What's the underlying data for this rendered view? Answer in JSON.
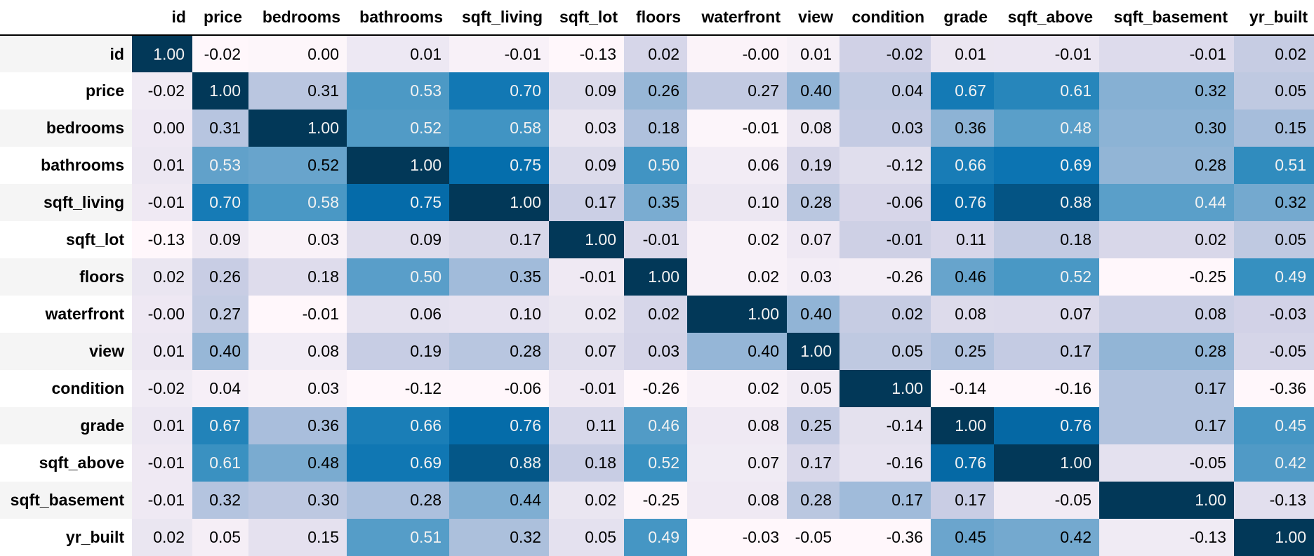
{
  "chart_data": {
    "type": "heatmap",
    "title": "",
    "xlabel": "",
    "ylabel": "",
    "columns": [
      "id",
      "price",
      "bedrooms",
      "bathrooms",
      "sqft_living",
      "sqft_lot",
      "floors",
      "waterfront",
      "view",
      "condition",
      "grade",
      "sqft_above",
      "sqft_basement",
      "yr_built"
    ],
    "rows": [
      "id",
      "price",
      "bedrooms",
      "bathrooms",
      "sqft_living",
      "sqft_lot",
      "floors",
      "waterfront",
      "view",
      "condition",
      "grade",
      "sqft_above",
      "sqft_basement",
      "yr_built"
    ],
    "values": [
      [
        "1.00",
        "-0.02",
        "0.00",
        "0.01",
        "-0.01",
        "-0.13",
        "0.02",
        "-0.00",
        "0.01",
        "-0.02",
        "0.01",
        "-0.01",
        "-0.01",
        "0.02"
      ],
      [
        "-0.02",
        "1.00",
        "0.31",
        "0.53",
        "0.70",
        "0.09",
        "0.26",
        "0.27",
        "0.40",
        "0.04",
        "0.67",
        "0.61",
        "0.32",
        "0.05"
      ],
      [
        "0.00",
        "0.31",
        "1.00",
        "0.52",
        "0.58",
        "0.03",
        "0.18",
        "-0.01",
        "0.08",
        "0.03",
        "0.36",
        "0.48",
        "0.30",
        "0.15"
      ],
      [
        "0.01",
        "0.53",
        "0.52",
        "1.00",
        "0.75",
        "0.09",
        "0.50",
        "0.06",
        "0.19",
        "-0.12",
        "0.66",
        "0.69",
        "0.28",
        "0.51"
      ],
      [
        "-0.01",
        "0.70",
        "0.58",
        "0.75",
        "1.00",
        "0.17",
        "0.35",
        "0.10",
        "0.28",
        "-0.06",
        "0.76",
        "0.88",
        "0.44",
        "0.32"
      ],
      [
        "-0.13",
        "0.09",
        "0.03",
        "0.09",
        "0.17",
        "1.00",
        "-0.01",
        "0.02",
        "0.07",
        "-0.01",
        "0.11",
        "0.18",
        "0.02",
        "0.05"
      ],
      [
        "0.02",
        "0.26",
        "0.18",
        "0.50",
        "0.35",
        "-0.01",
        "1.00",
        "0.02",
        "0.03",
        "-0.26",
        "0.46",
        "0.52",
        "-0.25",
        "0.49"
      ],
      [
        "-0.00",
        "0.27",
        "-0.01",
        "0.06",
        "0.10",
        "0.02",
        "0.02",
        "1.00",
        "0.40",
        "0.02",
        "0.08",
        "0.07",
        "0.08",
        "-0.03"
      ],
      [
        "0.01",
        "0.40",
        "0.08",
        "0.19",
        "0.28",
        "0.07",
        "0.03",
        "0.40",
        "1.00",
        "0.05",
        "0.25",
        "0.17",
        "0.28",
        "-0.05"
      ],
      [
        "-0.02",
        "0.04",
        "0.03",
        "-0.12",
        "-0.06",
        "-0.01",
        "-0.26",
        "0.02",
        "0.05",
        "1.00",
        "-0.14",
        "-0.16",
        "0.17",
        "-0.36"
      ],
      [
        "0.01",
        "0.67",
        "0.36",
        "0.66",
        "0.76",
        "0.11",
        "0.46",
        "0.08",
        "0.25",
        "-0.14",
        "1.00",
        "0.76",
        "0.17",
        "0.45"
      ],
      [
        "-0.01",
        "0.61",
        "0.48",
        "0.69",
        "0.88",
        "0.18",
        "0.52",
        "0.07",
        "0.17",
        "-0.16",
        "0.76",
        "1.00",
        "-0.05",
        "0.42"
      ],
      [
        "-0.01",
        "0.32",
        "0.30",
        "0.28",
        "0.44",
        "0.02",
        "-0.25",
        "0.08",
        "0.28",
        "0.17",
        "0.17",
        "-0.05",
        "1.00",
        "-0.13"
      ],
      [
        "0.02",
        "0.05",
        "0.15",
        "0.51",
        "0.32",
        "0.05",
        "0.49",
        "-0.03",
        "-0.05",
        "-0.36",
        "0.45",
        "0.42",
        "-0.13",
        "1.00"
      ]
    ],
    "colormap": "PuBu",
    "color_scale": "per-column",
    "colors": {
      "low": "#fff7fb",
      "high": "#023858",
      "dark_text": "#000000",
      "light_text": "#f1f1f1",
      "stripe": "#f5f5f5"
    },
    "grid": false,
    "legend": "none"
  }
}
